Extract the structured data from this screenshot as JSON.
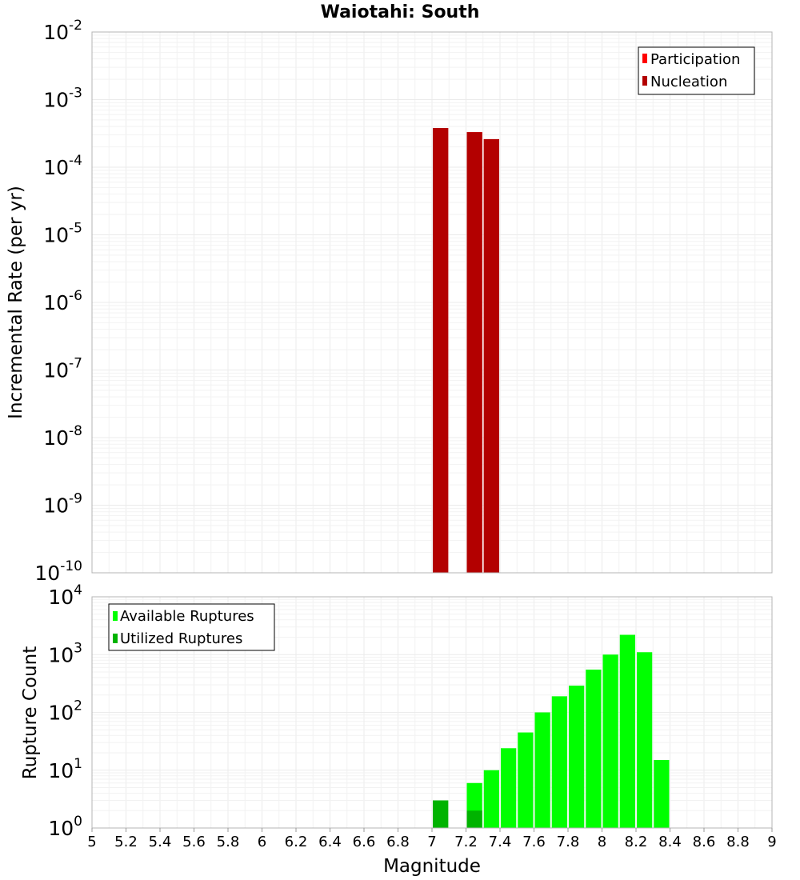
{
  "chart_data": [
    {
      "type": "bar",
      "title": "Waiotahi: South",
      "ylabel": "Incremental Rate (per yr)",
      "xlabel": "",
      "yscale": "log",
      "ylim_exponent": [
        -10,
        -2
      ],
      "xlim": [
        5,
        9
      ],
      "bin_width": 0.1,
      "legend_position": "top-right",
      "grid": true,
      "series": [
        {
          "name": "Participation",
          "color": "#ff0000",
          "x": [
            7.05,
            7.25,
            7.35
          ],
          "values": [
            0.00038,
            0.00033,
            0.00026
          ]
        },
        {
          "name": "Nucleation",
          "color": "#b30000",
          "x": [
            7.05,
            7.25,
            7.35
          ],
          "values": [
            0.00038,
            0.00033,
            0.00026
          ]
        }
      ]
    },
    {
      "type": "bar",
      "title": "",
      "ylabel": "Rupture Count",
      "xlabel": "Magnitude",
      "yscale": "log",
      "ylim_exponent": [
        0,
        4
      ],
      "xlim": [
        5,
        9
      ],
      "bin_width": 0.1,
      "legend_position": "top-left",
      "grid": true,
      "series": [
        {
          "name": "Available Ruptures",
          "color": "#00ff00",
          "x": [
            7.05,
            7.25,
            7.35,
            7.45,
            7.55,
            7.65,
            7.75,
            7.85,
            7.95,
            8.05,
            8.15,
            8.25,
            8.35
          ],
          "values": [
            3,
            6,
            10,
            24,
            45,
            100,
            190,
            290,
            550,
            1000,
            2200,
            1100,
            15
          ]
        },
        {
          "name": "Utilized Ruptures",
          "color": "#00b300",
          "x": [
            7.05,
            7.25,
            7.35
          ],
          "values": [
            3,
            2,
            1
          ]
        }
      ]
    }
  ],
  "x_ticks": [
    "5",
    "5.2",
    "5.4",
    "5.6",
    "5.8",
    "6",
    "6.2",
    "6.4",
    "6.6",
    "6.8",
    "7",
    "7.2",
    "7.4",
    "7.6",
    "7.8",
    "8",
    "8.2",
    "8.4",
    "8.6",
    "8.8",
    "9"
  ],
  "top_y_ticks": [
    "-10",
    "-9",
    "-8",
    "-7",
    "-6",
    "-5",
    "-4",
    "-3",
    "-2"
  ],
  "bottom_y_ticks": [
    "0",
    "1",
    "2",
    "3",
    "4"
  ],
  "tick_base": "10"
}
